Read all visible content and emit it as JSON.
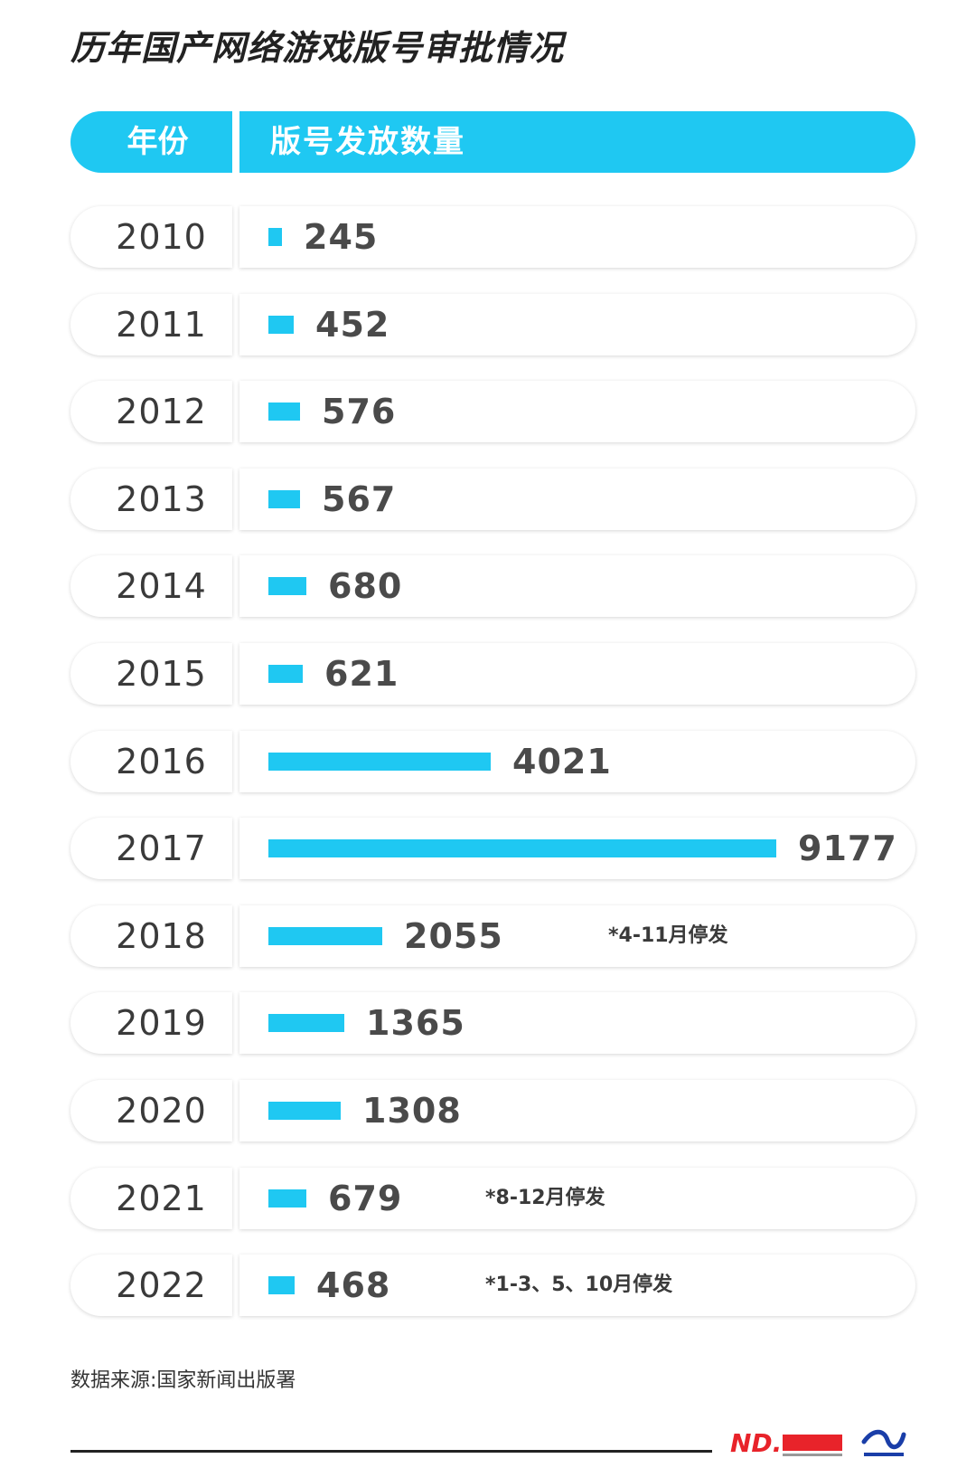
{
  "title": "历年国产网络游戏版号审批情况",
  "header": {
    "year_label": "年份",
    "count_label": "版号发放数量"
  },
  "source": "数据来源:国家新闻出版署",
  "colors": {
    "accent": "#1fc8f2",
    "text": "#3f3f3f",
    "logo_red": "#e8232a",
    "logo_blue": "#1a3ea8"
  },
  "icons": [
    "nandu-logo",
    "data-institute-logo"
  ],
  "chart_data": {
    "type": "bar",
    "orientation": "horizontal",
    "title": "历年国产网络游戏版号审批情况",
    "xlabel": "版号发放数量",
    "ylabel": "年份",
    "xlim": [
      0,
      9177
    ],
    "categories": [
      "2010",
      "2011",
      "2012",
      "2013",
      "2014",
      "2015",
      "2016",
      "2017",
      "2018",
      "2019",
      "2020",
      "2021",
      "2022"
    ],
    "values": [
      245,
      452,
      576,
      567,
      680,
      621,
      4021,
      9177,
      2055,
      1365,
      1308,
      679,
      468
    ],
    "value_labels": [
      "245",
      "452",
      "576",
      "567",
      "680",
      "621",
      "4021",
      "9177",
      "2055",
      "1365",
      "1308",
      "679",
      "468"
    ],
    "annotations": [
      {
        "category": "2018",
        "text": "*4-11月停发"
      },
      {
        "category": "2021",
        "text": "*8-12月停发"
      },
      {
        "category": "2022",
        "text": "*1-3、5、10月停发"
      }
    ],
    "grid": false,
    "legend": "none"
  }
}
